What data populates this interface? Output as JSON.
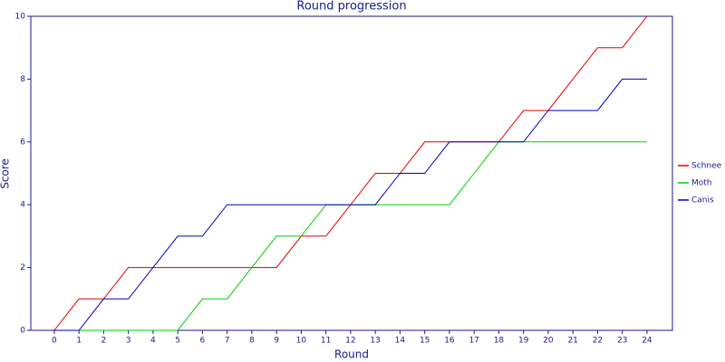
{
  "chart_data": {
    "type": "line",
    "title": "Round progression",
    "x_label": "Round",
    "y_label": "Score",
    "x": [
      0,
      1,
      2,
      3,
      4,
      5,
      6,
      7,
      8,
      9,
      10,
      11,
      12,
      13,
      14,
      15,
      16,
      17,
      18,
      19,
      20,
      21,
      22,
      23,
      24
    ],
    "series": [
      {
        "name": "Schnee",
        "color": "#e00000",
        "values": [
          0,
          1,
          1,
          2,
          2,
          2,
          2,
          2,
          2,
          2,
          3,
          3,
          4,
          5,
          5,
          6,
          6,
          6,
          6,
          7,
          7,
          8,
          9,
          9,
          10
        ]
      },
      {
        "name": "Moth",
        "color": "#00d000",
        "values": [
          0,
          0,
          0,
          0,
          0,
          0,
          1,
          1,
          2,
          3,
          3,
          4,
          4,
          4,
          4,
          4,
          4,
          5,
          6,
          6,
          6,
          6,
          6,
          6,
          6
        ]
      },
      {
        "name": "Canis",
        "color": "#0000c0",
        "values": [
          0,
          0,
          1,
          1,
          2,
          3,
          3,
          4,
          4,
          4,
          4,
          4,
          4,
          4,
          5,
          5,
          6,
          6,
          6,
          6,
          7,
          7,
          7,
          8,
          8
        ]
      }
    ],
    "xlim": [
      -0.95,
      25.03
    ],
    "ylim": [
      0,
      10
    ],
    "xticks": [
      0,
      1,
      2,
      3,
      4,
      5,
      6,
      7,
      8,
      9,
      10,
      11,
      12,
      13,
      14,
      15,
      16,
      17,
      18,
      19,
      20,
      21,
      22,
      23,
      24
    ],
    "yticks": [
      0,
      2,
      4,
      6,
      8,
      10
    ],
    "legend": "right"
  }
}
